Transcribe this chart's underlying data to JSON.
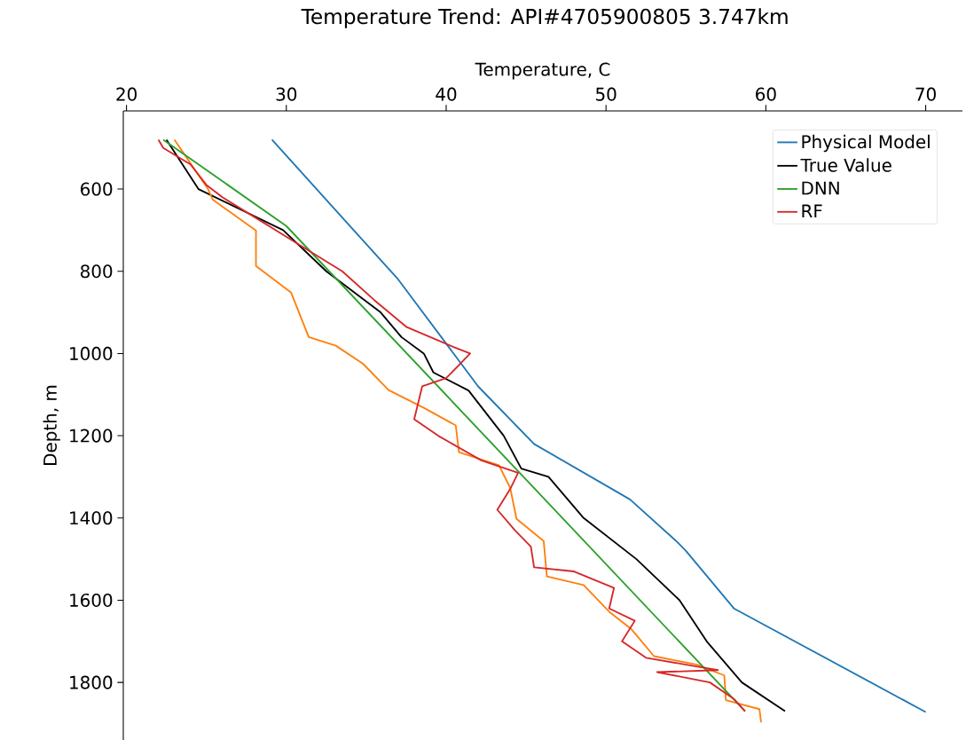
{
  "chart_data": {
    "type": "line",
    "title": "Temperature Trend: API#4705900805 3.747km",
    "xlabel": "Temperature, C",
    "ylabel": "Depth, m",
    "xlim": [
      19.8,
      72.3
    ],
    "xticks": [
      20,
      30,
      40,
      50,
      60,
      70
    ],
    "ylim": [
      1940,
      410
    ],
    "yticks": [
      600,
      800,
      1000,
      1200,
      1400,
      1600,
      1800
    ],
    "legend": "top right",
    "grid": false,
    "marker": "none",
    "line_style": "solid",
    "series": [
      {
        "name": "Physical Model",
        "color": "#1f77b4",
        "x": [
          29.1,
          37.0,
          42.0,
          45.5,
          51.5,
          54.5,
          55.0,
          58.0,
          70.0
        ],
        "values": [
          480,
          820,
          1080,
          1220,
          1355,
          1460,
          1480,
          1620,
          1872
        ]
      },
      {
        "name": "True Value",
        "color": "#000000",
        "x": [
          22.5,
          24.5,
          29.8,
          32.5,
          35.9,
          37.2,
          38.6,
          39.2,
          41.4,
          43.6,
          44.7,
          46.4,
          48.6,
          51.9,
          54.6,
          56.3,
          58.5,
          61.2
        ],
        "values": [
          480,
          600,
          700,
          800,
          900,
          960,
          1000,
          1046,
          1090,
          1200,
          1280,
          1300,
          1400,
          1500,
          1600,
          1700,
          1800,
          1870
        ]
      },
      {
        "color": "#ff7f0e",
        "x": [
          23.0,
          25.1,
          25.4,
          28.1,
          28.1,
          30.3,
          31.4,
          33.1,
          34.8,
          36.4,
          38.6,
          40.6,
          40.8,
          43.3,
          44.0,
          44.4,
          46.1,
          46.3,
          48.6,
          50.2,
          51.6,
          53.0,
          55.7,
          57.4,
          57.5,
          59.6,
          59.7
        ],
        "values": [
          480,
          600,
          626,
          701,
          787,
          852,
          960,
          981,
          1025,
          1089,
          1132,
          1175,
          1240,
          1272,
          1326,
          1402,
          1456,
          1542,
          1563,
          1628,
          1671,
          1736,
          1757,
          1783,
          1843,
          1865,
          1897
        ]
      },
      {
        "name": "DNN",
        "color": "#2ca02c",
        "x": [
          22.3,
          30.0,
          58.7
        ],
        "values": [
          480,
          690,
          1870
        ]
      },
      {
        "name": "RF",
        "color": "#d62728",
        "x": [
          22.0,
          22.3,
          24.0,
          25.0,
          26.0,
          28.5,
          31.0,
          33.5,
          35.5,
          37.5,
          39.0,
          40.5,
          41.5,
          40.0,
          38.5,
          38.0,
          39.5,
          42.2,
          44.5,
          44.0,
          43.2,
          44.3,
          45.3,
          45.5,
          48.0,
          50.5,
          50.2,
          51.8,
          51.0,
          52.5,
          55.5,
          57.0,
          53.2,
          56.5,
          58.0,
          58.7
        ],
        "values": [
          480,
          500,
          540,
          590,
          620,
          680,
          740,
          800,
          870,
          935,
          960,
          985,
          1000,
          1060,
          1080,
          1160,
          1200,
          1260,
          1290,
          1330,
          1380,
          1430,
          1470,
          1520,
          1530,
          1570,
          1620,
          1650,
          1700,
          1740,
          1760,
          1770,
          1775,
          1800,
          1840,
          1870
        ]
      }
    ]
  }
}
